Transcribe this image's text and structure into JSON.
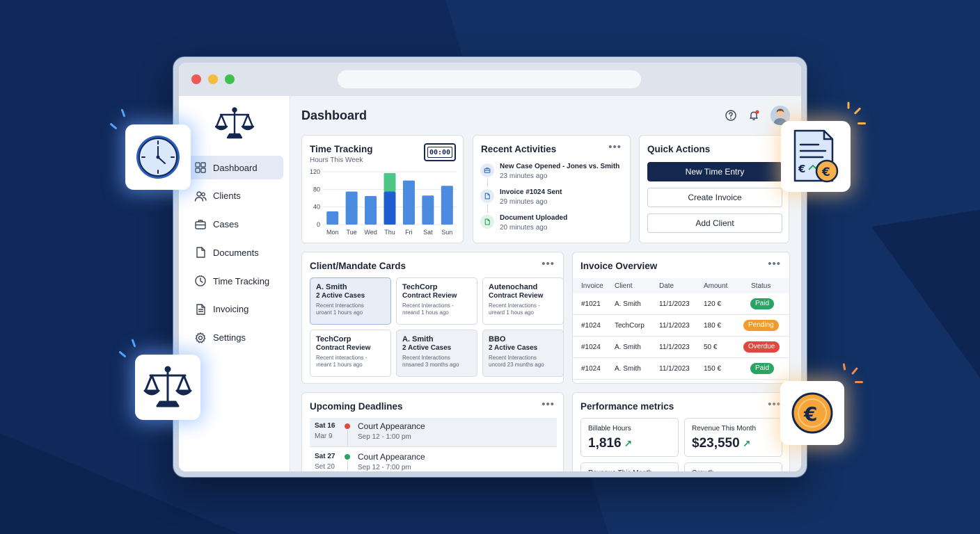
{
  "page": {
    "title": "Dashboard"
  },
  "sidebar": {
    "items": [
      {
        "label": "Dashboard",
        "icon": "grid-icon",
        "active": true
      },
      {
        "label": "Clients",
        "icon": "users-icon"
      },
      {
        "label": "Cases",
        "icon": "briefcase-icon"
      },
      {
        "label": "Documents",
        "icon": "document-icon"
      },
      {
        "label": "Time Tracking",
        "icon": "clock-icon"
      },
      {
        "label": "Invoicing",
        "icon": "invoice-icon"
      },
      {
        "label": "Settings",
        "icon": "gear-icon"
      }
    ]
  },
  "time_tracking": {
    "title": "Time Tracking",
    "subtitle": "Hours This Week",
    "timer_display": "00:00"
  },
  "chart_data": {
    "type": "bar",
    "categories": [
      "Mon",
      "Tue",
      "Wed",
      "Thu",
      "Fri",
      "Sat",
      "Sun"
    ],
    "series": [
      {
        "values": [
          30,
          75,
          65,
          75,
          100,
          66,
          88
        ]
      },
      {
        "values": [
          0,
          0,
          0,
          42,
          0,
          0,
          0
        ]
      }
    ],
    "stacked": true,
    "colors": [
      "#4a8be0",
      "#4cc587"
    ],
    "highlight_index": 3,
    "highlight_color": "#1f5ed0",
    "yticks": [
      0,
      40,
      80,
      120
    ],
    "ylim": [
      0,
      120
    ],
    "grid": true
  },
  "recent_activities": {
    "title": "Recent Activities",
    "items": [
      {
        "title": "New Case Opened - Jones vs. Smith",
        "time": "23 minutes ago",
        "icon": "briefcase-icon",
        "color": "#3c6fc4",
        "bg": "#e3ebf6"
      },
      {
        "title": "Invoice #1024 Sent",
        "time": "29 minutes ago",
        "icon": "document-icon",
        "color": "#3c6fc4",
        "bg": "#e3ebf6"
      },
      {
        "title": "Document Uploaded",
        "time": "20 minutes ago",
        "icon": "document-icon",
        "color": "#2aa464",
        "bg": "#dff3e7"
      }
    ]
  },
  "quick_actions": {
    "title": "Quick Actions",
    "buttons": [
      "New Time Entry",
      "Create Invoice",
      "Add Client"
    ]
  },
  "client_cards": {
    "title": "Client/Mandate Cards",
    "cards": [
      {
        "name": "A. Smith",
        "sub": "2 Active Cases",
        "meta": "Recent Interactions",
        "meta2": "uroant 1 hours ago"
      },
      {
        "name": "TechCorp",
        "sub": "Contract Review",
        "meta": "Recent Interactions -",
        "meta2": "nreand 1 hous ago"
      },
      {
        "name": "Autenochand",
        "sub": "Contract Review",
        "meta": "Recent Interactions -",
        "meta2": "ureard 1 hous ago"
      },
      {
        "name": "TechCorp",
        "sub": "Contract Review",
        "meta": "Recent interactions -",
        "meta2": "ıneant 1 hours ago"
      },
      {
        "name": "A. Smith",
        "sub": "2 Active Cases",
        "meta": "Recent Interactions",
        "meta2": "nnsaned 3 months ago"
      },
      {
        "name": "BBO",
        "sub": "2 Active Cases",
        "meta": "Recent Interactions",
        "meta2": "uncord 23 munths ago"
      }
    ]
  },
  "invoice_overview": {
    "title": "Invoice Overview",
    "columns": [
      "Invoice",
      "Client",
      "Date",
      "Amount",
      "Status"
    ],
    "rows": [
      {
        "invoice": "#1021",
        "client": "A. Smith",
        "date": "11/1/2023",
        "amount": "120 €",
        "status": "Paid",
        "status_color": "#2aa464"
      },
      {
        "invoice": "#1024",
        "client": "TechCorp",
        "date": "11/1/2023",
        "amount": "180 €",
        "status": "Pending",
        "status_color": "#f29b2c"
      },
      {
        "invoice": "#1024",
        "client": "A. Smith",
        "date": "11/1/2023",
        "amount": "50 €",
        "status": "Overdue",
        "status_color": "#e2473f"
      },
      {
        "invoice": "#1024",
        "client": "A. Smith",
        "date": "11/1/2023",
        "amount": "150 €",
        "status": "Paid",
        "status_color": "#2aa464"
      }
    ]
  },
  "deadlines": {
    "title": "Upcoming Deadlines",
    "items": [
      {
        "date": "Sat 16",
        "date2": "Mar 9",
        "title": "Court Appearance",
        "time": "Sep 12 - 1:00 pm",
        "dot_color": "#e2473f"
      },
      {
        "date": "Sat 27",
        "date2": "Set 20",
        "title": "Court Appearance",
        "time": "Sep 12 - 7:00 pm",
        "dot_color": "#2aa464"
      }
    ]
  },
  "performance": {
    "title": "Performance metrics",
    "metrics": [
      {
        "label": "Billable Hours",
        "value": "1,816"
      },
      {
        "label": "Revenue This Month",
        "value": "$23,550"
      },
      {
        "label": "Revenue This Month",
        "value": ""
      },
      {
        "label": "Growth",
        "value": ""
      }
    ]
  }
}
